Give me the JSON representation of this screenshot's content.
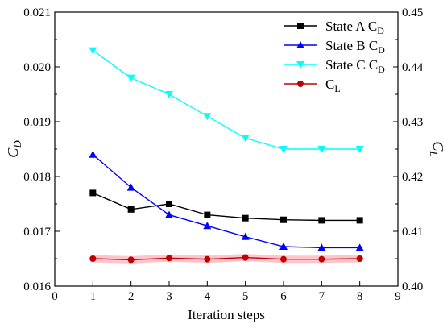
{
  "chart_data": {
    "type": "line",
    "x_label": "Iteration steps",
    "y_left_label": "C",
    "y_left_label_sub": "D",
    "y_right_label": "C",
    "y_right_label_sub": "L",
    "x_ticks": [
      "0",
      "1",
      "2",
      "3",
      "4",
      "5",
      "6",
      "7",
      "8",
      "9"
    ],
    "y_left_ticks": [
      "0.016",
      "0.017",
      "0.018",
      "0.019",
      "0.020",
      "0.021"
    ],
    "y_right_ticks": [
      "0.40",
      "0.41",
      "0.42",
      "0.43",
      "0.44",
      "0.45"
    ],
    "xlim": [
      0,
      9
    ],
    "ylim_left": [
      0.016,
      0.021
    ],
    "ylim_right": [
      0.4,
      0.45
    ],
    "grid": false,
    "legend_position": "top-right",
    "x": [
      1,
      2,
      3,
      4,
      5,
      6,
      7,
      8
    ],
    "series": [
      {
        "name": "State A C",
        "name_sub": "D",
        "axis": "left",
        "color": "#000000",
        "marker": "square",
        "values": [
          0.0177,
          0.0174,
          0.0175,
          0.0173,
          0.01724,
          0.01721,
          0.0172,
          0.0172
        ]
      },
      {
        "name": "State B C",
        "name_sub": "D",
        "axis": "left",
        "color": "#0000ff",
        "marker": "triangle-up",
        "values": [
          0.0184,
          0.0178,
          0.0173,
          0.0171,
          0.0169,
          0.01672,
          0.0167,
          0.0167
        ]
      },
      {
        "name": "State C C",
        "name_sub": "D",
        "axis": "left",
        "color": "#00ffff",
        "marker": "triangle-down",
        "values": [
          0.0203,
          0.0198,
          0.0195,
          0.0191,
          0.0187,
          0.0185,
          0.0185,
          0.0185
        ]
      },
      {
        "name": "C",
        "name_sub": "L",
        "axis": "right",
        "color": "#c00000",
        "marker": "circle",
        "band_color": "#ffb6c1",
        "values": [
          0.405,
          0.4048,
          0.4051,
          0.4049,
          0.4052,
          0.4049,
          0.4049,
          0.405
        ]
      }
    ]
  }
}
